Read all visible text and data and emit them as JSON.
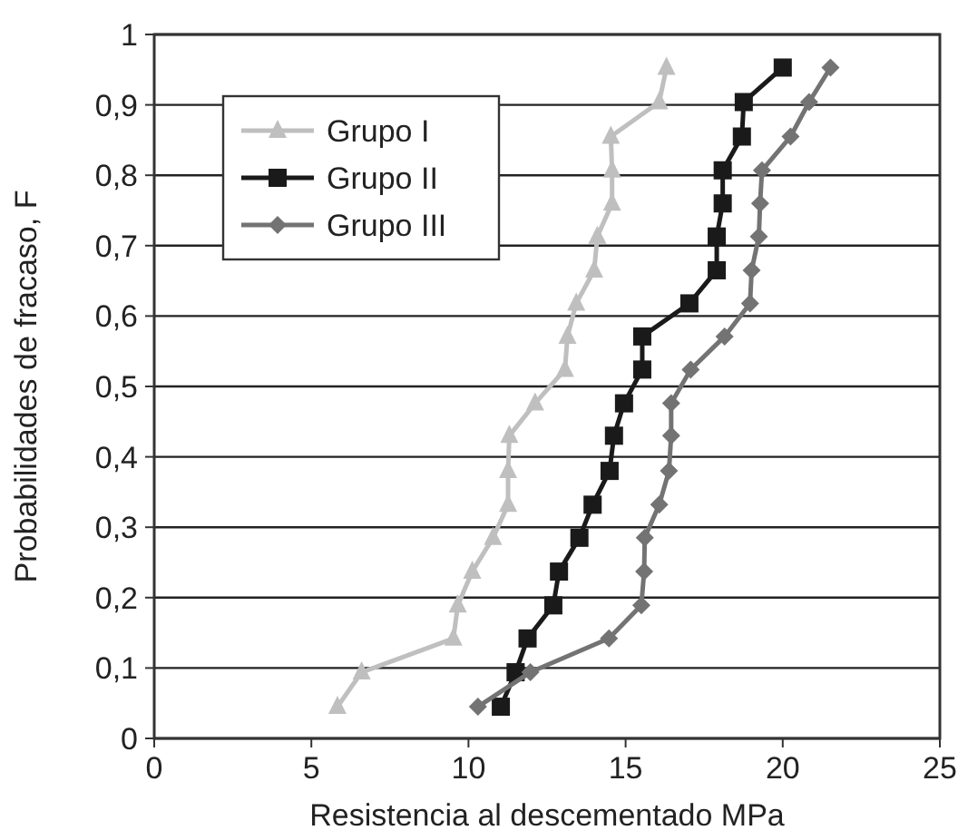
{
  "chart_data": {
    "type": "line",
    "xlabel": "Resistencia al descementado MPa",
    "ylabel": "Probabilidades de fracaso, F",
    "xlim": [
      0,
      25
    ],
    "xticks": [
      0,
      5,
      10,
      15,
      20,
      25
    ],
    "ylim": [
      0,
      1
    ],
    "yticks": [
      0,
      {
        "value": 0.1,
        "label": "0,1"
      },
      {
        "value": 0.2,
        "label": "0,2"
      },
      {
        "value": 0.3,
        "label": "0,3"
      },
      {
        "value": 0.4,
        "label": "0,4"
      },
      {
        "value": 0.5,
        "label": "0,5"
      },
      {
        "value": 0.6,
        "label": "0,6"
      },
      {
        "value": 0.7,
        "label": "0,7"
      },
      {
        "value": 0.8,
        "label": "0,8"
      },
      {
        "value": 0.9,
        "label": "0,9"
      },
      1
    ],
    "grid": "y",
    "legend": "top left",
    "line_style": "solid",
    "series": [
      {
        "name": "Grupo I",
        "color": "#bfbfbf",
        "marker": "triangle",
        "x": [
          5.83,
          6.6,
          9.52,
          9.66,
          10.12,
          10.78,
          11.26,
          11.26,
          11.3,
          12.12,
          13.07,
          13.15,
          13.43,
          14.0,
          14.1,
          14.57,
          14.57,
          14.53,
          16.07,
          16.3
        ],
        "values": [
          0.045,
          0.094,
          0.142,
          0.189,
          0.237,
          0.285,
          0.332,
          0.38,
          0.43,
          0.476,
          0.524,
          0.571,
          0.618,
          0.665,
          0.713,
          0.76,
          0.807,
          0.855,
          0.904,
          0.953
        ]
      },
      {
        "name": "Grupo II",
        "color": "#1a1a1a",
        "marker": "square",
        "x": [
          11.03,
          11.5,
          11.88,
          12.7,
          12.88,
          13.53,
          13.95,
          14.49,
          14.63,
          14.95,
          15.53,
          15.53,
          17.03,
          17.9,
          17.9,
          18.09,
          18.09,
          18.7,
          18.76,
          20.0
        ],
        "values": [
          0.045,
          0.094,
          0.142,
          0.189,
          0.237,
          0.285,
          0.332,
          0.38,
          0.43,
          0.476,
          0.524,
          0.571,
          0.618,
          0.665,
          0.713,
          0.76,
          0.807,
          0.855,
          0.904,
          0.953
        ]
      },
      {
        "name": "Grupo III",
        "color": "#737373",
        "marker": "diamond",
        "x": [
          10.3,
          11.97,
          14.47,
          15.5,
          15.59,
          15.61,
          16.07,
          16.38,
          16.45,
          16.45,
          17.07,
          18.15,
          18.96,
          19.01,
          19.24,
          19.28,
          19.34,
          20.25,
          20.84,
          21.52
        ],
        "values": [
          0.045,
          0.094,
          0.142,
          0.189,
          0.237,
          0.285,
          0.332,
          0.38,
          0.43,
          0.476,
          0.524,
          0.571,
          0.618,
          0.665,
          0.713,
          0.76,
          0.807,
          0.855,
          0.904,
          0.953
        ]
      }
    ]
  }
}
